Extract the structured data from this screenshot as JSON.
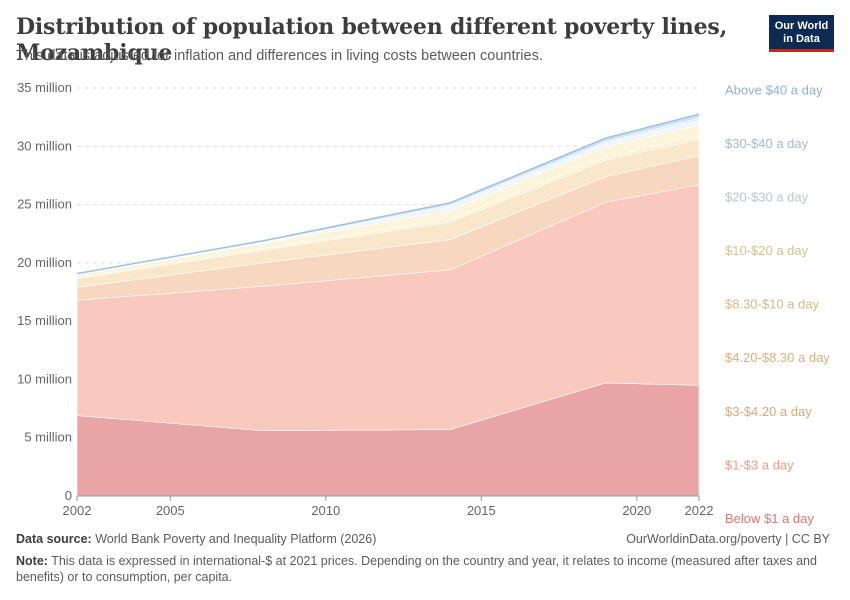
{
  "header": {
    "title": "Distribution of population between different poverty lines, Mozambique",
    "subtitle": "This data is adjusted for inflation and differences in living costs between countries.",
    "logo_line1": "Our World",
    "logo_line2": "in Data"
  },
  "footer": {
    "source_label": "Data source:",
    "source_text": "World Bank Poverty and Inequality Platform (2026)",
    "credit": "OurWorldinData.org/poverty | CC BY",
    "note_label": "Note:",
    "note_text": "This data is expressed in international-$ at 2021 prices. Depending on the country and year, it relates to income (measured after taxes and benefits) or to consumption, per capita."
  },
  "chart_data": {
    "type": "area",
    "stacked": true,
    "x": [
      2002,
      2008,
      2014,
      2019,
      2022
    ],
    "xticks": [
      2002,
      2005,
      2010,
      2015,
      2020,
      2022
    ],
    "yticks": [
      0,
      5,
      10,
      15,
      20,
      25,
      30,
      35
    ],
    "ytick_labels": [
      "0",
      "5 million",
      "10 million",
      "15 million",
      "20 million",
      "25 million",
      "30 million",
      "35 million"
    ],
    "ylim": [
      0,
      35
    ],
    "xlim": [
      2002,
      2022
    ],
    "grid": true,
    "legend_position": "right, end labels",
    "series": [
      {
        "name": "Below $1 a day",
        "values": [
          6.9,
          5.6,
          5.7,
          9.7,
          9.5
        ],
        "color": "#e8a0a0"
      },
      {
        "name": "$1-$3 a day",
        "values": [
          9.9,
          12.4,
          13.7,
          15.5,
          17.2
        ],
        "color": "#f9c6b9"
      },
      {
        "name": "$3-$4.20 a day",
        "values": [
          1.1,
          2.0,
          2.6,
          2.2,
          2.5
        ],
        "color": "#f7d5bd"
      },
      {
        "name": "$4.20-$8.30 a day",
        "values": [
          0.75,
          1.1,
          1.5,
          1.4,
          1.4
        ],
        "color": "#fae6c8"
      },
      {
        "name": "$8.30-$10 a day",
        "values": [
          0.1,
          0.15,
          0.2,
          0.25,
          0.25
        ],
        "color": "#fbeecf"
      },
      {
        "name": "$10-$20 a day",
        "values": [
          0.2,
          0.4,
          0.8,
          0.9,
          1.0
        ],
        "color": "#fdf4d9"
      },
      {
        "name": "$20-$30 a day",
        "values": [
          0.05,
          0.1,
          0.3,
          0.3,
          0.35
        ],
        "color": "#eef5fb"
      },
      {
        "name": "$30-$40 a day",
        "values": [
          0.03,
          0.06,
          0.15,
          0.15,
          0.2
        ],
        "color": "#e1edf8"
      },
      {
        "name": "Above $40 a day",
        "values": [
          0.05,
          0.09,
          0.2,
          0.3,
          0.35
        ],
        "color": "#cfe1f3"
      }
    ],
    "label_colors": {
      "Below $1 a day": "#e0766f",
      "$1-$3 a day": "#ee9b82",
      "$3-$4.20 a day": "#e2a77a",
      "$4.20-$8.30 a day": "#dcaf78",
      "$8.30-$10 a day": "#d6b882",
      "$10-$20 a day": "#d3c08c",
      "$20-$30 a day": "#b7c7d6",
      "$30-$40 a day": "#9fbcd8",
      "Above $40 a day": "#8fb1d6"
    }
  }
}
